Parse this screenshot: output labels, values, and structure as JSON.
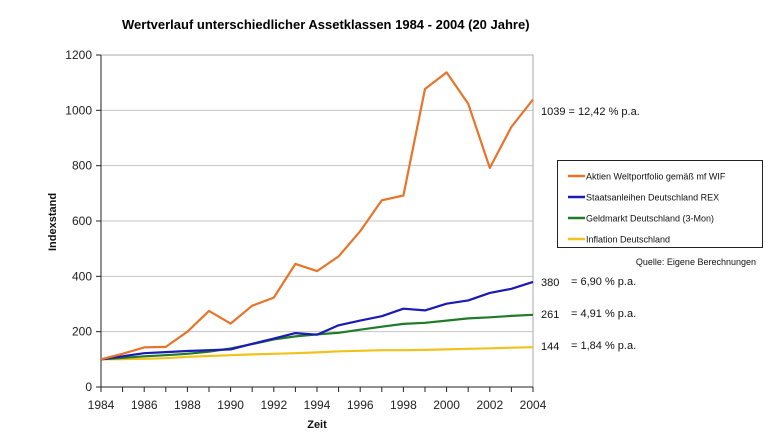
{
  "chart_data": {
    "type": "line",
    "title": "Wertverlauf unterschiedlicher Assetklassen 1984 - 2004 (20 Jahre)",
    "xlabel": "Zeit",
    "ylabel": "Indexstand",
    "x": [
      1984,
      1985,
      1986,
      1987,
      1988,
      1989,
      1990,
      1991,
      1992,
      1993,
      1994,
      1995,
      1996,
      1997,
      1998,
      1999,
      2000,
      2001,
      2002,
      2003,
      2004
    ],
    "xlim": [
      1984,
      2004
    ],
    "ylim": [
      0,
      1200
    ],
    "x_ticks": [
      "1984",
      "1986",
      "1988",
      "1990",
      "1992",
      "1994",
      "1996",
      "1998",
      "2000",
      "2002",
      "2004"
    ],
    "y_ticks": [
      "0",
      "200",
      "400",
      "600",
      "800",
      "1000",
      "1200"
    ],
    "grid": "horizontal",
    "legend_position": "right",
    "series": [
      {
        "name": "Aktien Weltportfolio gemäß mf WIF",
        "color": "#E8742A",
        "values": [
          100,
          120,
          143,
          145,
          200,
          275,
          229,
          294,
          323,
          445,
          419,
          472,
          563,
          675,
          692,
          1077,
          1137,
          1024,
          792,
          940,
          1039
        ],
        "end_label": "1039 = 12,42 %  p.a."
      },
      {
        "name": "Staatsanleihen Deutschland REX",
        "color": "#1A1AB5",
        "values": [
          100,
          111,
          122,
          126,
          130,
          133,
          136,
          156,
          175,
          195,
          189,
          223,
          240,
          256,
          283,
          277,
          301,
          313,
          340,
          355,
          380
        ],
        "end_label_value": "380",
        "end_label_rate": "= 6,90 % p.a."
      },
      {
        "name": "Geldmarkt Deutschland (3-Mon)",
        "color": "#1F7A2A",
        "values": [
          100,
          105,
          111,
          115,
          120,
          128,
          139,
          155,
          172,
          183,
          190,
          196,
          207,
          218,
          228,
          232,
          240,
          248,
          252,
          257,
          261
        ],
        "end_label_value": "261",
        "end_label_rate": "= 4,91 % p.a."
      },
      {
        "name": "Inflation Deutschland",
        "color": "#F2C21B",
        "values": [
          100,
          101,
          102,
          104,
          109,
          112,
          115,
          118,
          120,
          122,
          125,
          129,
          131,
          133,
          133,
          134,
          136,
          138,
          140,
          142,
          144
        ],
        "end_label_value": "144",
        "end_label_rate": "= 1,84 % p.a."
      }
    ],
    "annotations": {
      "source": "Quelle: Eigene Berechnungen"
    }
  }
}
